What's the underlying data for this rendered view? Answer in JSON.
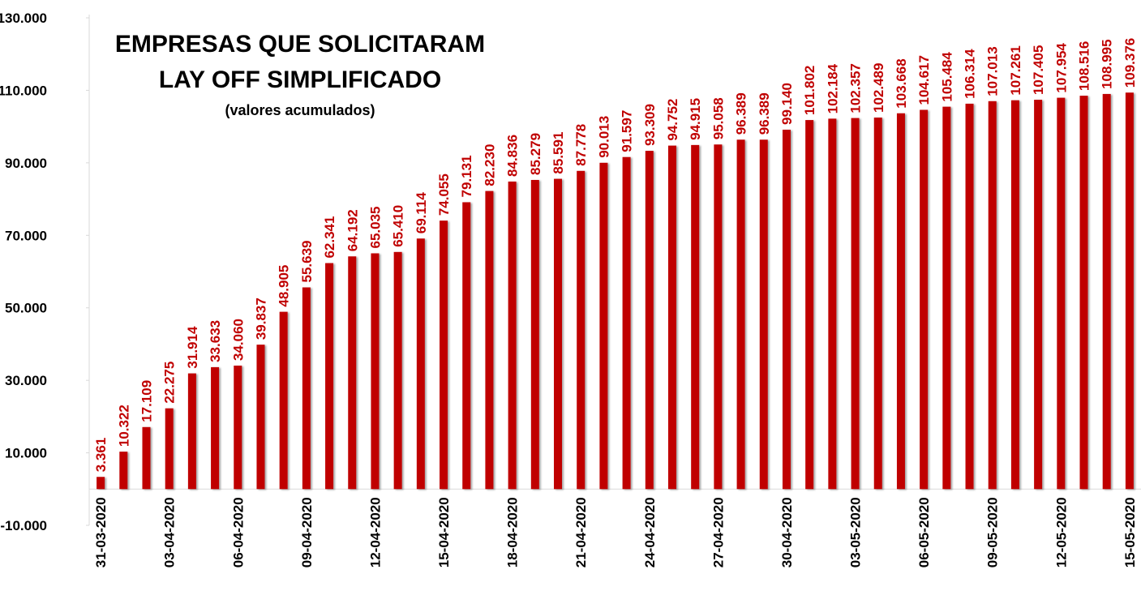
{
  "chart_data": {
    "type": "bar",
    "title": [
      "EMPRESAS QUE SOLICITARAM",
      "LAY OFF SIMPLIFICADO"
    ],
    "subtitle": "(valores acumulados)",
    "categories": [
      "31-03-2020",
      null,
      null,
      "03-04-2020",
      null,
      null,
      "06-04-2020",
      null,
      null,
      "09-04-2020",
      null,
      null,
      "12-04-2020",
      null,
      null,
      "15-04-2020",
      null,
      null,
      "18-04-2020",
      null,
      null,
      "21-04-2020",
      null,
      null,
      "24-04-2020",
      null,
      null,
      "27-04-2020",
      null,
      null,
      "30-04-2020",
      null,
      null,
      "03-05-2020",
      null,
      null,
      "06-05-2020",
      null,
      null,
      "09-05-2020",
      null,
      null,
      "12-05-2020",
      null,
      null,
      "15-05-2020"
    ],
    "values": [
      3361,
      10322,
      17109,
      22275,
      31914,
      33633,
      34060,
      39837,
      48905,
      55639,
      62341,
      64192,
      65035,
      65410,
      69114,
      74055,
      79131,
      82230,
      84836,
      85279,
      85591,
      87778,
      90013,
      91597,
      93309,
      94752,
      94915,
      95058,
      96389,
      96389,
      99140,
      101802,
      102184,
      102357,
      102489,
      103668,
      104617,
      105484,
      106314,
      107013,
      107261,
      107405,
      107954,
      108516,
      108995,
      109376
    ],
    "value_labels": [
      "3.361",
      "10.322",
      "17.109",
      "22.275",
      "31.914",
      "33.633",
      "34.060",
      "39.837",
      "48.905",
      "55.639",
      "62.341",
      "64.192",
      "65.035",
      "65.410",
      "69.114",
      "74.055",
      "79.131",
      "82.230",
      "84.836",
      "85.279",
      "85.591",
      "87.778",
      "90.013",
      "91.597",
      "93.309",
      "94.752",
      "94.915",
      "95.058",
      "96.389",
      "96.389",
      "99.140",
      "101.802",
      "102.184",
      "102.357",
      "102.489",
      "103.668",
      "104.617",
      "105.484",
      "106.314",
      "107.013",
      "107.261",
      "107.405",
      "107.954",
      "108.516",
      "108.995",
      "109.376"
    ],
    "color": "#c00000",
    "ylim": [
      -10000,
      130000
    ],
    "yticks": [
      {
        "value": -10000,
        "label": "-10.000"
      },
      {
        "value": 10000,
        "label": "10.000"
      },
      {
        "value": 30000,
        "label": "30.000"
      },
      {
        "value": 50000,
        "label": "50.000"
      },
      {
        "value": 70000,
        "label": "70.000"
      },
      {
        "value": 90000,
        "label": "90.000"
      },
      {
        "value": 110000,
        "label": "110.000"
      },
      {
        "value": 130000,
        "label": "130.000"
      }
    ],
    "grid": false
  }
}
